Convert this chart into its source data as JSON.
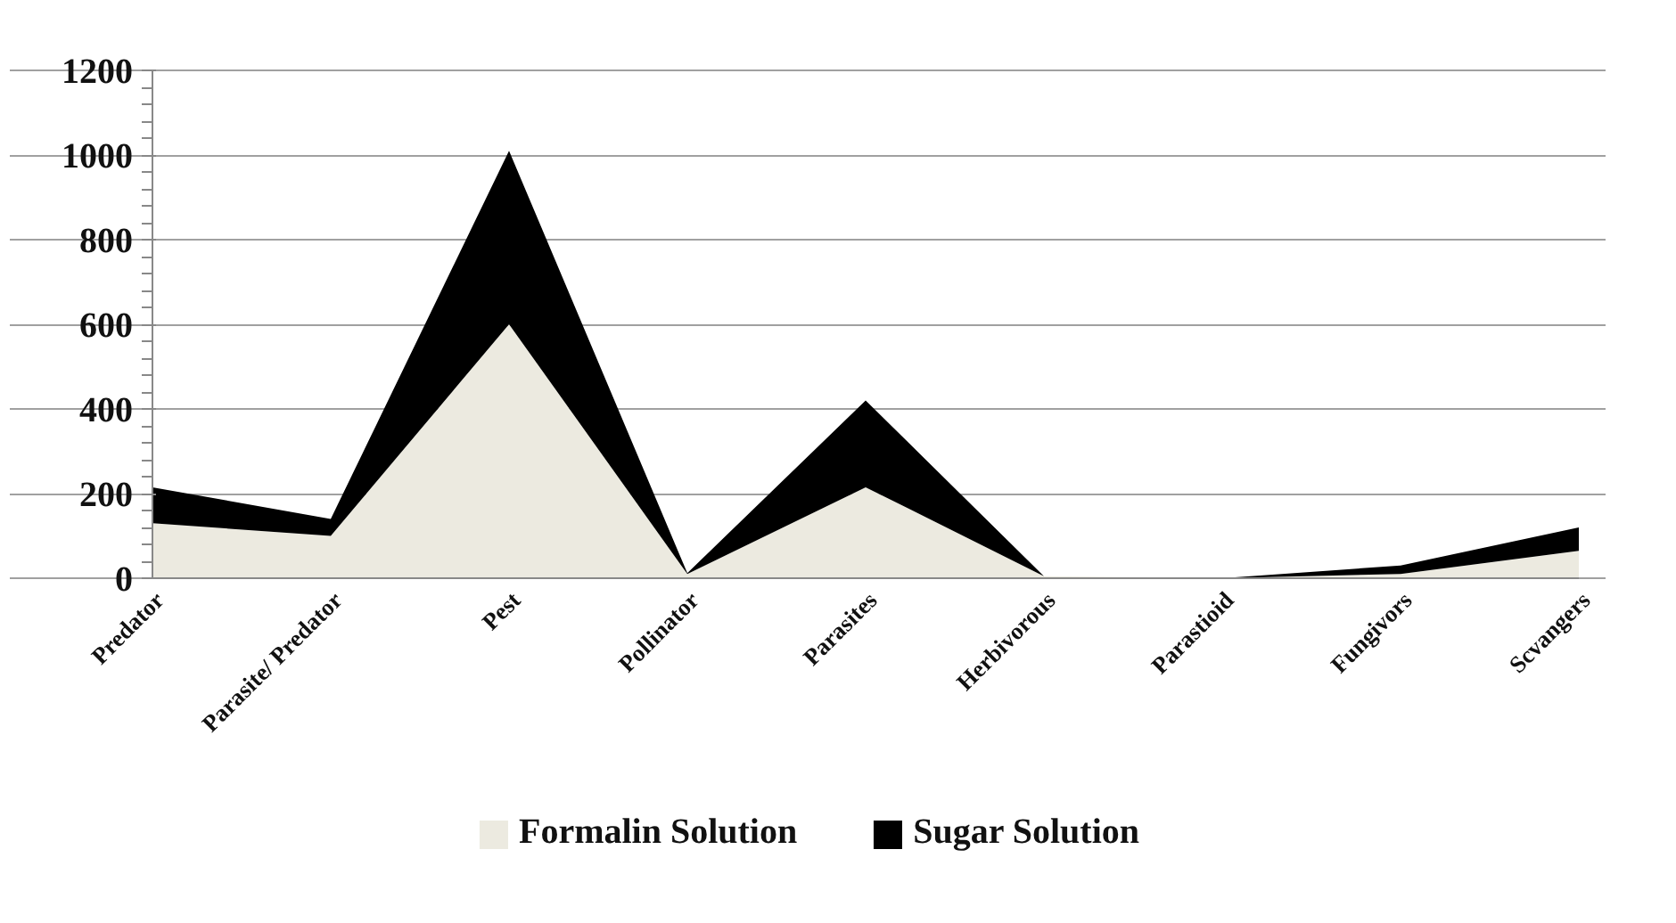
{
  "chart_data": {
    "type": "area",
    "stacked": true,
    "categories": [
      "Predator",
      "Parasite/ Predator",
      "Pest",
      "Pollinator",
      "Parasites",
      "Herbivorous",
      "Parastioid",
      "Fungivors",
      "Scvangers"
    ],
    "series": [
      {
        "name": "Formalin Solution",
        "color": "#eceae0",
        "values": [
          130,
          100,
          600,
          10,
          215,
          5,
          0,
          10,
          65
        ]
      },
      {
        "name": "Sugar Solution",
        "color": "#000000",
        "values": [
          85,
          40,
          410,
          2,
          205,
          0,
          0,
          20,
          55
        ]
      }
    ],
    "ylim": [
      0,
      1200
    ],
    "yticks": [
      0,
      200,
      400,
      600,
      800,
      1000,
      1200
    ],
    "grid": "y",
    "legend": "bottom"
  }
}
